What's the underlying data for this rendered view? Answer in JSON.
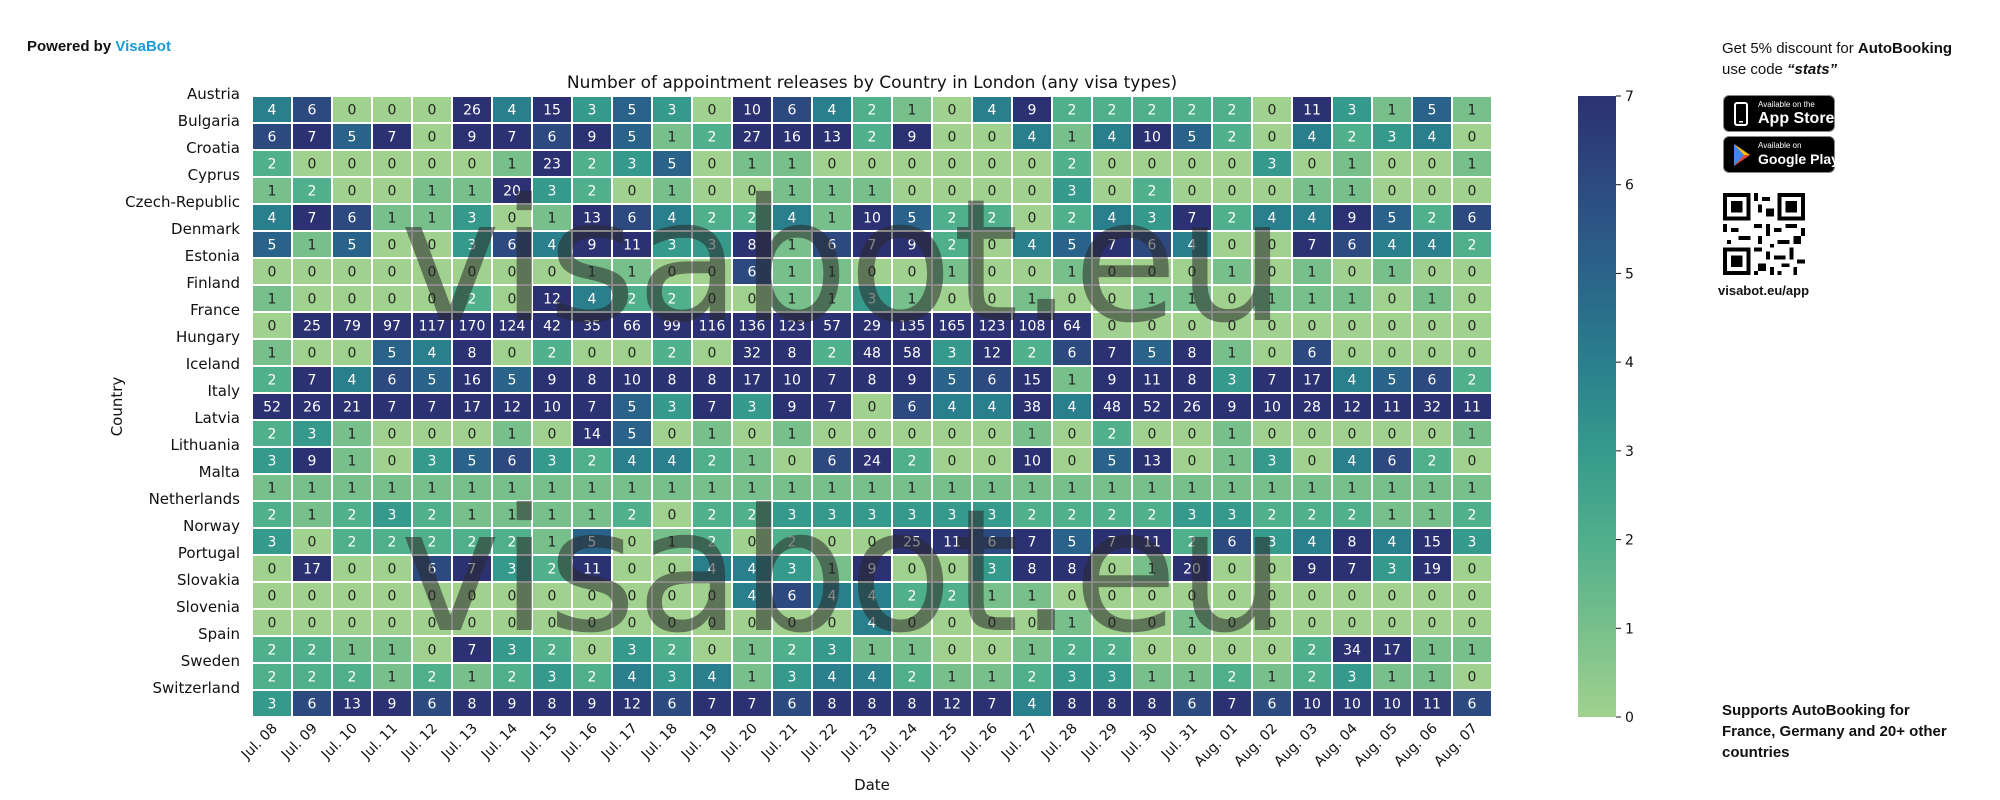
{
  "header": {
    "powered_prefix": "Powered by ",
    "powered_brand": "VisaBot"
  },
  "promo": {
    "line1_prefix": "Get 5% discount for ",
    "line1_brand": "AutoBooking",
    "line2_prefix": "use code ",
    "line2_code": "“stats”",
    "appstore_small": "Available on the",
    "appstore_big": "App Store",
    "googleplay_small": "Available on",
    "googleplay_big": "Google Play",
    "qr_label": "visabot.eu/app",
    "supports_prefix": "Supports ",
    "supports_brand": "AutoBooking",
    "supports_rest": " for France, Germany and 20+ other countries"
  },
  "watermark": "visabot.eu",
  "colors": {
    "low": "#a0d18e",
    "mid": "#2a7f8d",
    "high": "#2c3173",
    "text_light": "#ffffff",
    "text_dark": "#222222"
  },
  "chart_data": {
    "type": "heatmap",
    "title": "Number of appointment releases by Country in London (any visa types)",
    "xlabel": "Date",
    "ylabel": "Country",
    "color_range": [
      0,
      7
    ],
    "colorbar_ticks": [
      "0",
      "1",
      "2",
      "3",
      "4",
      "5",
      "6",
      "7"
    ],
    "x": [
      "Jul. 08",
      "Jul. 09",
      "Jul. 10",
      "Jul. 11",
      "Jul. 12",
      "Jul. 13",
      "Jul. 14",
      "Jul. 15",
      "Jul. 16",
      "Jul. 17",
      "Jul. 18",
      "Jul. 19",
      "Jul. 20",
      "Jul. 21",
      "Jul. 22",
      "Jul. 23",
      "Jul. 24",
      "Jul. 25",
      "Jul. 26",
      "Jul. 27",
      "Jul. 28",
      "Jul. 29",
      "Jul. 30",
      "Jul. 31",
      "Aug. 01",
      "Aug. 02",
      "Aug. 03",
      "Aug. 04",
      "Aug. 05",
      "Aug. 06",
      "Aug. 07"
    ],
    "y_labels": [
      "Austria",
      "Bulgaria",
      "Croatia",
      "Cyprus",
      "Czech-Republic",
      "Denmark",
      "Estonia",
      "Finland",
      "France",
      "Hungary",
      "Iceland",
      "Italy",
      "Latvia",
      "Lithuania",
      "Malta",
      "Netherlands",
      "Norway",
      "Portugal",
      "Slovakia",
      "Slovenia",
      "Spain",
      "Sweden",
      "Switzerland"
    ],
    "values": [
      [
        4,
        6,
        0,
        0,
        0,
        26,
        4,
        15,
        3,
        5,
        3,
        0,
        10,
        6,
        4,
        2,
        1,
        0,
        4,
        9,
        2,
        2,
        2,
        2,
        2,
        0,
        11,
        3,
        1,
        5,
        1
      ],
      [
        6,
        7,
        5,
        7,
        0,
        9,
        7,
        6,
        9,
        5,
        1,
        2,
        27,
        16,
        13,
        2,
        9,
        0,
        0,
        4,
        1,
        4,
        10,
        5,
        2,
        0,
        4,
        2,
        3,
        4,
        0
      ],
      [
        2,
        0,
        0,
        0,
        0,
        0,
        1,
        23,
        2,
        3,
        5,
        0,
        1,
        1,
        0,
        0,
        0,
        0,
        0,
        0,
        2,
        0,
        0,
        0,
        0,
        3,
        0,
        1,
        0,
        0,
        1
      ],
      [
        1,
        2,
        0,
        0,
        1,
        1,
        20,
        3,
        2,
        0,
        1,
        0,
        0,
        1,
        1,
        1,
        0,
        0,
        0,
        0,
        3,
        0,
        2,
        0,
        0,
        0,
        1,
        1,
        0,
        0,
        0
      ],
      [
        4,
        7,
        6,
        1,
        1,
        3,
        0,
        1,
        13,
        6,
        4,
        2,
        2,
        4,
        1,
        10,
        5,
        2,
        2,
        0,
        2,
        4,
        3,
        7,
        2,
        4,
        4,
        9,
        5,
        2,
        6
      ],
      [
        5,
        1,
        5,
        0,
        0,
        3,
        6,
        4,
        9,
        11,
        3,
        3,
        8,
        1,
        6,
        7,
        9,
        2,
        0,
        4,
        5,
        7,
        6,
        4,
        0,
        0,
        7,
        6,
        4,
        4,
        2
      ],
      [
        0,
        0,
        0,
        0,
        0,
        0,
        0,
        0,
        1,
        1,
        0,
        0,
        6,
        1,
        1,
        0,
        0,
        1,
        0,
        0,
        1,
        0,
        0,
        0,
        1,
        0,
        1,
        0,
        1,
        0,
        0
      ],
      [
        1,
        0,
        0,
        0,
        0,
        2,
        0,
        12,
        4,
        2,
        2,
        0,
        0,
        1,
        1,
        3,
        1,
        0,
        0,
        1,
        0,
        0,
        1,
        1,
        0,
        1,
        1,
        1,
        0,
        1,
        0
      ],
      [
        0,
        25,
        79,
        97,
        117,
        170,
        124,
        42,
        35,
        66,
        99,
        116,
        136,
        123,
        57,
        29,
        135,
        165,
        123,
        108,
        64,
        0,
        0,
        0,
        0,
        0,
        0,
        0,
        0,
        0,
        0
      ],
      [
        1,
        0,
        0,
        5,
        4,
        8,
        0,
        2,
        0,
        0,
        2,
        0,
        32,
        8,
        2,
        48,
        58,
        3,
        12,
        2,
        6,
        7,
        5,
        8,
        1,
        0,
        6,
        0,
        0,
        0,
        0
      ],
      [
        2,
        7,
        4,
        6,
        5,
        16,
        5,
        9,
        8,
        10,
        8,
        8,
        17,
        10,
        7,
        8,
        9,
        5,
        6,
        15,
        1,
        9,
        11,
        8,
        3,
        7,
        17,
        4,
        5,
        6,
        2
      ],
      [
        52,
        26,
        21,
        7,
        7,
        17,
        12,
        10,
        7,
        5,
        3,
        7,
        3,
        9,
        7,
        0,
        6,
        4,
        4,
        38,
        4,
        48,
        52,
        26,
        9,
        10,
        28,
        12,
        11,
        32,
        11
      ],
      [
        2,
        3,
        1,
        0,
        0,
        0,
        1,
        0,
        14,
        5,
        0,
        1,
        0,
        1,
        0,
        0,
        0,
        0,
        0,
        1,
        0,
        2,
        0,
        0,
        1,
        0,
        0,
        0,
        0,
        0,
        1
      ],
      [
        3,
        9,
        1,
        0,
        3,
        5,
        6,
        3,
        2,
        4,
        4,
        2,
        1,
        0,
        6,
        24,
        2,
        0,
        0,
        10,
        0,
        5,
        13,
        0,
        1,
        3,
        0,
        4,
        6,
        2,
        0
      ],
      [
        1,
        1,
        1,
        1,
        1,
        1,
        1,
        1,
        1,
        1,
        1,
        1,
        1,
        1,
        1,
        1,
        1,
        1,
        1,
        1,
        1,
        1,
        1,
        1,
        1,
        1,
        1,
        1,
        1,
        1,
        1
      ],
      [
        2,
        1,
        2,
        3,
        2,
        1,
        1,
        1,
        1,
        2,
        0,
        2,
        2,
        3,
        3,
        3,
        3,
        3,
        3,
        2,
        2,
        2,
        2,
        3,
        3,
        2,
        2,
        2,
        1,
        1,
        2
      ],
      [
        3,
        0,
        2,
        2,
        2,
        2,
        2,
        1,
        5,
        0,
        1,
        2,
        0,
        2,
        0,
        0,
        25,
        11,
        6,
        7,
        5,
        7,
        11,
        2,
        6,
        3,
        4,
        8,
        4,
        15,
        3
      ],
      [
        0,
        17,
        0,
        0,
        6,
        7,
        3,
        2,
        11,
        0,
        0,
        4,
        4,
        3,
        1,
        9,
        0,
        0,
        3,
        8,
        8,
        0,
        1,
        20,
        0,
        0,
        9,
        7,
        3,
        19,
        0
      ],
      [
        0,
        0,
        0,
        0,
        0,
        0,
        0,
        0,
        0,
        0,
        0,
        0,
        4,
        6,
        4,
        4,
        2,
        2,
        1,
        1,
        0,
        0,
        0,
        0,
        0,
        0,
        0,
        0,
        0,
        0,
        0
      ],
      [
        0,
        0,
        0,
        0,
        0,
        0,
        0,
        0,
        0,
        0,
        0,
        0,
        0,
        0,
        0,
        4,
        0,
        0,
        0,
        0,
        1,
        0,
        0,
        1,
        0,
        0,
        0,
        0,
        0,
        0,
        0
      ],
      [
        2,
        2,
        1,
        1,
        0,
        7,
        3,
        2,
        0,
        3,
        2,
        0,
        1,
        2,
        3,
        1,
        1,
        0,
        0,
        1,
        2,
        2,
        0,
        0,
        0,
        0,
        2,
        34,
        17,
        1,
        1
      ],
      [
        2,
        2,
        2,
        1,
        2,
        1,
        2,
        3,
        2,
        4,
        3,
        4,
        1,
        3,
        4,
        4,
        2,
        1,
        1,
        2,
        3,
        3,
        1,
        1,
        2,
        1,
        2,
        3,
        1,
        1,
        0
      ],
      [
        3,
        6,
        13,
        9,
        6,
        8,
        9,
        8,
        9,
        12,
        6,
        7,
        7,
        6,
        8,
        8,
        8,
        12,
        7,
        4,
        8,
        8,
        8,
        6,
        7,
        6,
        10,
        10,
        10,
        11,
        6
      ]
    ]
  }
}
